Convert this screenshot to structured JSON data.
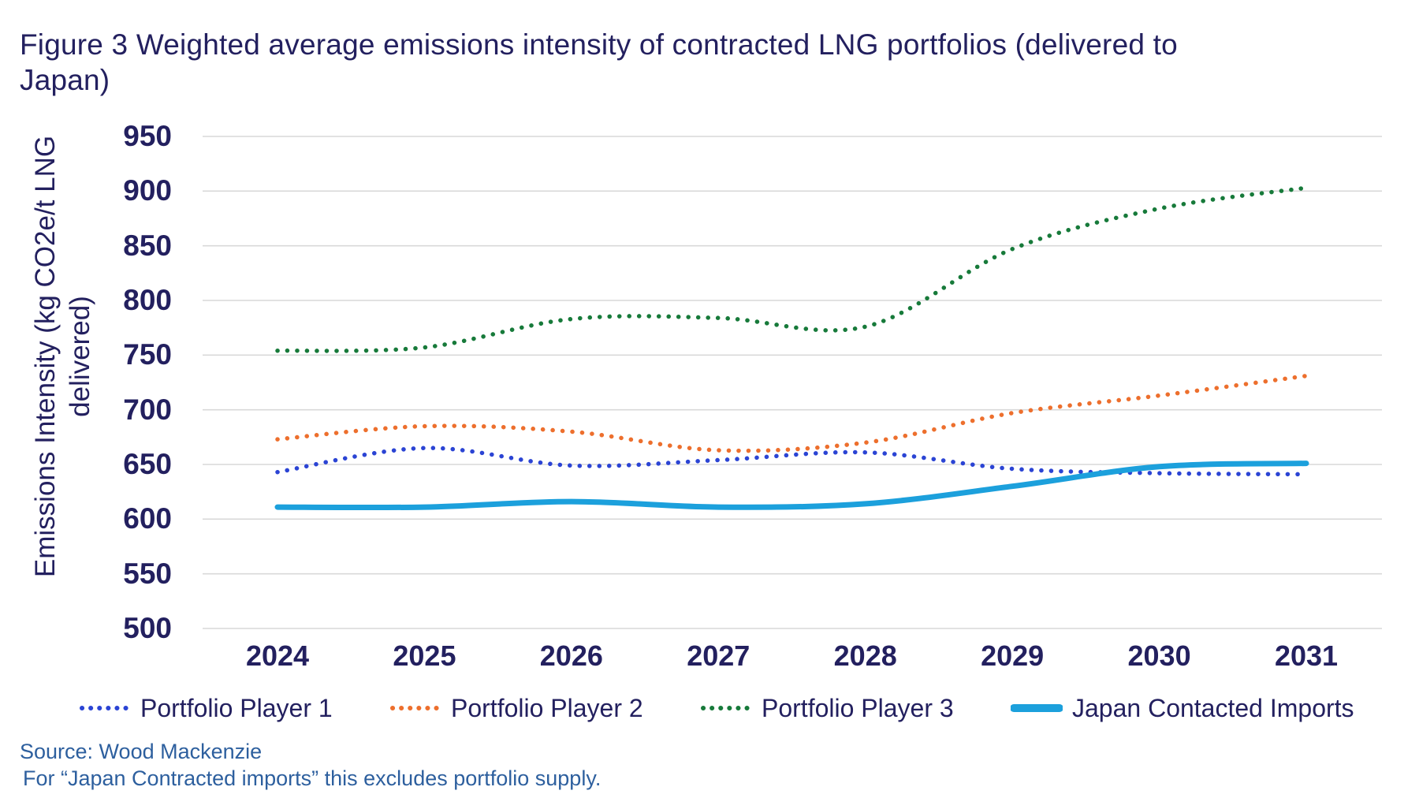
{
  "page": {
    "title": "Figure 3 Weighted average emissions intensity of contracted LNG portfolios (delivered to Japan)",
    "source_line": "Source: Wood Mackenzie",
    "note_line": "For “Japan Contracted imports” this excludes portfolio supply."
  },
  "colors": {
    "title_text": "#23205F",
    "axis_text": "#23205F",
    "footer_text": "#2D5F9E",
    "gridline": "#D9D9D9",
    "player1_blue": "#2B44D4",
    "player2_orange": "#ED6F2D",
    "player3_green": "#177A3A",
    "japan_teal": "#1CA0DC"
  },
  "chart_data": {
    "type": "line",
    "title": "Figure 3 Weighted average emissions intensity of contracted LNG portfolios (delivered to Japan)",
    "xlabel": "",
    "ylabel": "Emissions Intensity (kg CO2e/t LNG delivered)",
    "categories": [
      "2024",
      "2025",
      "2026",
      "2027",
      "2028",
      "2029",
      "2030",
      "2031"
    ],
    "ylim": [
      500,
      950
    ],
    "y_ticks": [
      950,
      900,
      850,
      800,
      750,
      700,
      650,
      600,
      550,
      500
    ],
    "grid": "horizontal-only",
    "legend_position": "bottom",
    "line_shape": "smooth",
    "series": [
      {
        "name": "Portfolio Player 1",
        "color": "#2B44D4",
        "style": "dotted",
        "values": [
          643,
          665,
          649,
          654,
          661,
          646,
          642,
          641
        ]
      },
      {
        "name": "Portfolio Player 2",
        "color": "#ED6F2D",
        "style": "dotted",
        "values": [
          673,
          685,
          680,
          663,
          670,
          697,
          713,
          731
        ]
      },
      {
        "name": "Portfolio Player 3",
        "color": "#177A3A",
        "style": "dotted",
        "values": [
          754,
          757,
          783,
          784,
          776,
          847,
          884,
          903
        ]
      },
      {
        "name": "Japan Contacted Imports",
        "color": "#1CA0DC",
        "style": "solid",
        "values": [
          611,
          611,
          616,
          611,
          614,
          630,
          648,
          651
        ]
      }
    ]
  }
}
